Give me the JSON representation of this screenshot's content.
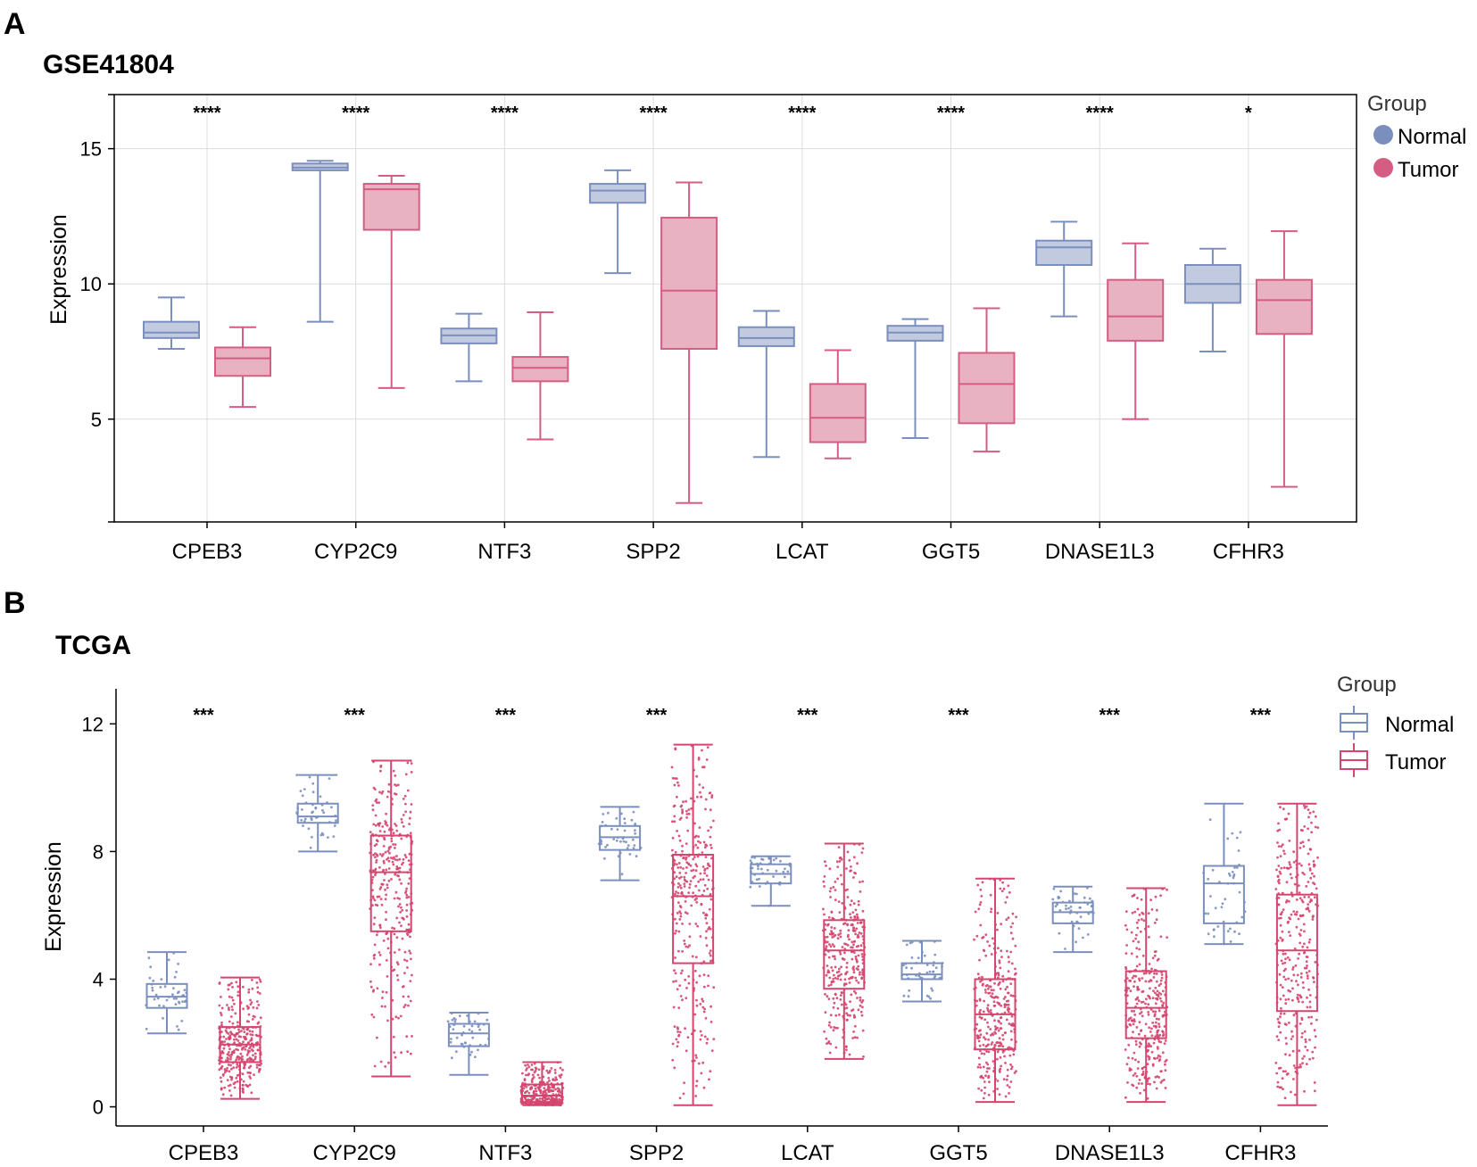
{
  "panel_a": {
    "letter": "A",
    "title": "GSE41804",
    "chart_data": {
      "type": "boxplot",
      "title": "GSE41804",
      "xlabel": "",
      "ylabel": "Expression",
      "ylim": [
        1.2,
        17.0
      ],
      "yticks": [
        5,
        10,
        15
      ],
      "grid": true,
      "legend": {
        "title": "Group",
        "position": "right",
        "style": "dot",
        "entries": [
          "Normal",
          "Tumor"
        ]
      },
      "categories": [
        "CPEB3",
        "CYP2C9",
        "NTF3",
        "SPP2",
        "LCAT",
        "GGT5",
        "DNASE1L3",
        "CFHR3"
      ],
      "significance": [
        "****",
        "****",
        "****",
        "****",
        "****",
        "****",
        "****",
        "*"
      ],
      "series": [
        {
          "name": "Normal",
          "color": "#7b8fbe",
          "fill": "#c2cadf",
          "boxes": [
            {
              "whisker_low": 7.6,
              "q1": 8.0,
              "median": 8.2,
              "q3": 8.6,
              "whisker_high": 9.5
            },
            {
              "whisker_low": 8.6,
              "q1": 14.2,
              "median": 14.3,
              "q3": 14.45,
              "whisker_high": 14.55
            },
            {
              "whisker_low": 6.4,
              "q1": 7.8,
              "median": 8.1,
              "q3": 8.35,
              "whisker_high": 8.9
            },
            {
              "whisker_low": 10.4,
              "q1": 13.0,
              "median": 13.45,
              "q3": 13.7,
              "whisker_high": 14.2
            },
            {
              "whisker_low": 3.6,
              "q1": 7.7,
              "median": 8.0,
              "q3": 8.4,
              "whisker_high": 9.0
            },
            {
              "whisker_low": 4.3,
              "q1": 7.9,
              "median": 8.2,
              "q3": 8.45,
              "whisker_high": 8.7
            },
            {
              "whisker_low": 8.8,
              "q1": 10.7,
              "median": 11.35,
              "q3": 11.6,
              "whisker_high": 12.3
            },
            {
              "whisker_low": 7.5,
              "q1": 9.3,
              "median": 10.0,
              "q3": 10.7,
              "whisker_high": 11.3
            }
          ]
        },
        {
          "name": "Tumor",
          "color": "#d55d84",
          "fill": "#e8b2c2",
          "boxes": [
            {
              "whisker_low": 5.45,
              "q1": 6.6,
              "median": 7.25,
              "q3": 7.65,
              "whisker_high": 8.4
            },
            {
              "whisker_low": 6.15,
              "q1": 12.0,
              "median": 13.5,
              "q3": 13.7,
              "whisker_high": 14.0
            },
            {
              "whisker_low": 4.25,
              "q1": 6.4,
              "median": 6.9,
              "q3": 7.3,
              "whisker_high": 8.95
            },
            {
              "whisker_low": 1.9,
              "q1": 7.6,
              "median": 9.75,
              "q3": 12.45,
              "whisker_high": 13.75
            },
            {
              "whisker_low": 3.55,
              "q1": 4.15,
              "median": 5.05,
              "q3": 6.3,
              "whisker_high": 7.55
            },
            {
              "whisker_low": 3.8,
              "q1": 4.85,
              "median": 6.3,
              "q3": 7.45,
              "whisker_high": 9.1
            },
            {
              "whisker_low": 5.0,
              "q1": 7.9,
              "median": 8.8,
              "q3": 10.15,
              "whisker_high": 11.5
            },
            {
              "whisker_low": 2.5,
              "q1": 8.15,
              "median": 9.4,
              "q3": 10.15,
              "whisker_high": 11.95
            }
          ]
        }
      ]
    }
  },
  "panel_b": {
    "letter": "B",
    "title": "TCGA",
    "chart_data": {
      "type": "boxplot",
      "title": "TCGA",
      "xlabel": "",
      "ylabel": "Expression",
      "ylim": [
        -0.6,
        13.1
      ],
      "yticks": [
        0,
        4,
        8,
        12
      ],
      "grid": false,
      "jitter_points": true,
      "legend": {
        "title": "Group",
        "position": "right",
        "style": "box",
        "entries": [
          "Normal",
          "Tumor"
        ]
      },
      "categories": [
        "CPEB3",
        "CYP2C9",
        "NTF3",
        "SPP2",
        "LCAT",
        "GGT5",
        "DNASE1L3",
        "CFHR3"
      ],
      "significance": [
        "***",
        "***",
        "***",
        "***",
        "***",
        "***",
        "***",
        "***"
      ],
      "series": [
        {
          "name": "Normal",
          "color": "#7b8fbe",
          "boxes": [
            {
              "whisker_low": 2.3,
              "q1": 3.1,
              "median": 3.45,
              "q3": 3.85,
              "whisker_high": 4.85
            },
            {
              "whisker_low": 8.0,
              "q1": 8.9,
              "median": 9.1,
              "q3": 9.5,
              "whisker_high": 10.4
            },
            {
              "whisker_low": 1.0,
              "q1": 1.9,
              "median": 2.3,
              "q3": 2.6,
              "whisker_high": 2.95
            },
            {
              "whisker_low": 7.1,
              "q1": 8.05,
              "median": 8.45,
              "q3": 8.8,
              "whisker_high": 9.4
            },
            {
              "whisker_low": 6.3,
              "q1": 7.0,
              "median": 7.3,
              "q3": 7.6,
              "whisker_high": 7.85
            },
            {
              "whisker_low": 3.3,
              "q1": 4.0,
              "median": 4.15,
              "q3": 4.5,
              "whisker_high": 5.2
            },
            {
              "whisker_low": 4.85,
              "q1": 5.75,
              "median": 6.1,
              "q3": 6.4,
              "whisker_high": 6.9
            },
            {
              "whisker_low": 5.1,
              "q1": 5.75,
              "median": 7.0,
              "q3": 7.55,
              "whisker_high": 9.5
            }
          ]
        },
        {
          "name": "Tumor",
          "color": "#d4456f",
          "boxes": [
            {
              "whisker_low": 0.25,
              "q1": 1.4,
              "median": 1.95,
              "q3": 2.5,
              "whisker_high": 4.05
            },
            {
              "whisker_low": 0.95,
              "q1": 5.5,
              "median": 7.35,
              "q3": 8.5,
              "whisker_high": 10.85
            },
            {
              "whisker_low": 0.05,
              "q1": 0.15,
              "median": 0.35,
              "q3": 0.7,
              "whisker_high": 1.4
            },
            {
              "whisker_low": 0.05,
              "q1": 4.5,
              "median": 6.6,
              "q3": 7.9,
              "whisker_high": 11.35
            },
            {
              "whisker_low": 1.5,
              "q1": 3.7,
              "median": 4.9,
              "q3": 5.85,
              "whisker_high": 8.25
            },
            {
              "whisker_low": 0.15,
              "q1": 1.8,
              "median": 2.9,
              "q3": 4.0,
              "whisker_high": 7.15
            },
            {
              "whisker_low": 0.15,
              "q1": 2.15,
              "median": 3.1,
              "q3": 4.25,
              "whisker_high": 6.85
            },
            {
              "whisker_low": 0.05,
              "q1": 3.0,
              "median": 4.9,
              "q3": 6.65,
              "whisker_high": 9.5
            }
          ]
        }
      ]
    }
  }
}
